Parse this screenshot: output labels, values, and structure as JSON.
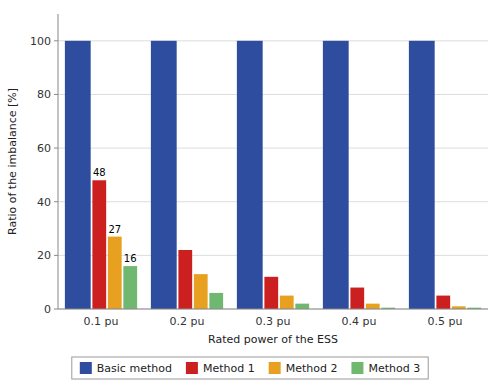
{
  "chart_data": {
    "type": "bar",
    "categories": [
      "0.1 pu",
      "0.2 pu",
      "0.3 pu",
      "0.4 pu",
      "0.5 pu"
    ],
    "series": [
      {
        "name": "Basic method",
        "color": "#2e4d9e",
        "values": [
          100,
          100,
          100,
          100,
          100
        ]
      },
      {
        "name": "Method 1",
        "color": "#cc2020",
        "values": [
          48,
          22,
          12,
          8,
          5
        ]
      },
      {
        "name": "Method 2",
        "color": "#e8a020",
        "values": [
          27,
          13,
          5,
          2,
          1
        ]
      },
      {
        "name": "Method 3",
        "color": "#70b870",
        "values": [
          16,
          6,
          2,
          0.5,
          0.5
        ]
      }
    ],
    "annotations": [
      {
        "text": "48",
        "category": "0.1 pu",
        "series": "Method 1"
      },
      {
        "text": "27",
        "category": "0.1 pu",
        "series": "Method 2"
      },
      {
        "text": "16",
        "category": "0.1 pu",
        "series": "Method 3"
      }
    ],
    "ylabel": "Ratio of the imbalance [%]",
    "xlabel": "Rated power of the ESS",
    "ylim": [
      0,
      110
    ],
    "yticks": [
      0,
      20,
      40,
      60,
      80,
      100
    ],
    "grid": true,
    "legend": "bottom"
  }
}
